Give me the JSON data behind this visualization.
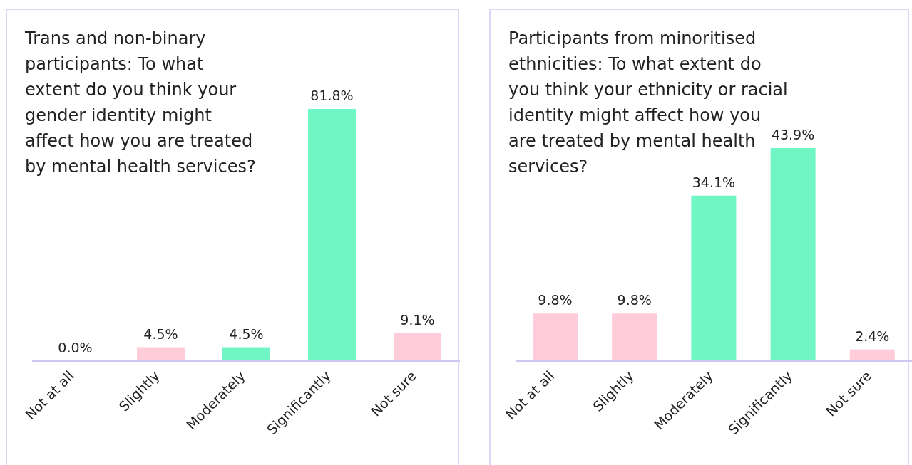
{
  "chart_data": [
    {
      "type": "bar",
      "title": "Trans and non-binary participants: To what extent do you think your gender identity might affect how you are treated by mental health services?",
      "categories": [
        "Not at all",
        "Slightly",
        "Moderately",
        "Significantly",
        "Not sure"
      ],
      "values": [
        0.0,
        4.5,
        4.5,
        81.8,
        9.1
      ],
      "value_labels": [
        "0.0%",
        "4.5%",
        "4.5%",
        "81.8%",
        "9.1%"
      ],
      "colors": [
        "#ffccd9",
        "#ffccd9",
        "#70f5c5",
        "#70f5c5",
        "#ffccd9"
      ],
      "grid": false,
      "legend": false
    },
    {
      "type": "bar",
      "title": "Participants from minoritised ethnicities: To what extent do you think your ethnicity or racial identity might affect how you are treated by mental health services?",
      "categories": [
        "Not at all",
        "Slightly",
        "Moderately",
        "Significantly",
        "Not sure"
      ],
      "values": [
        9.8,
        9.8,
        34.1,
        43.9,
        2.4
      ],
      "value_labels": [
        "9.8%",
        "9.8%",
        "34.1%",
        "43.9%",
        "2.4%"
      ],
      "colors": [
        "#ffccd9",
        "#ffccd9",
        "#70f5c5",
        "#70f5c5",
        "#ffccd9"
      ],
      "grid": false,
      "legend": false
    }
  ]
}
